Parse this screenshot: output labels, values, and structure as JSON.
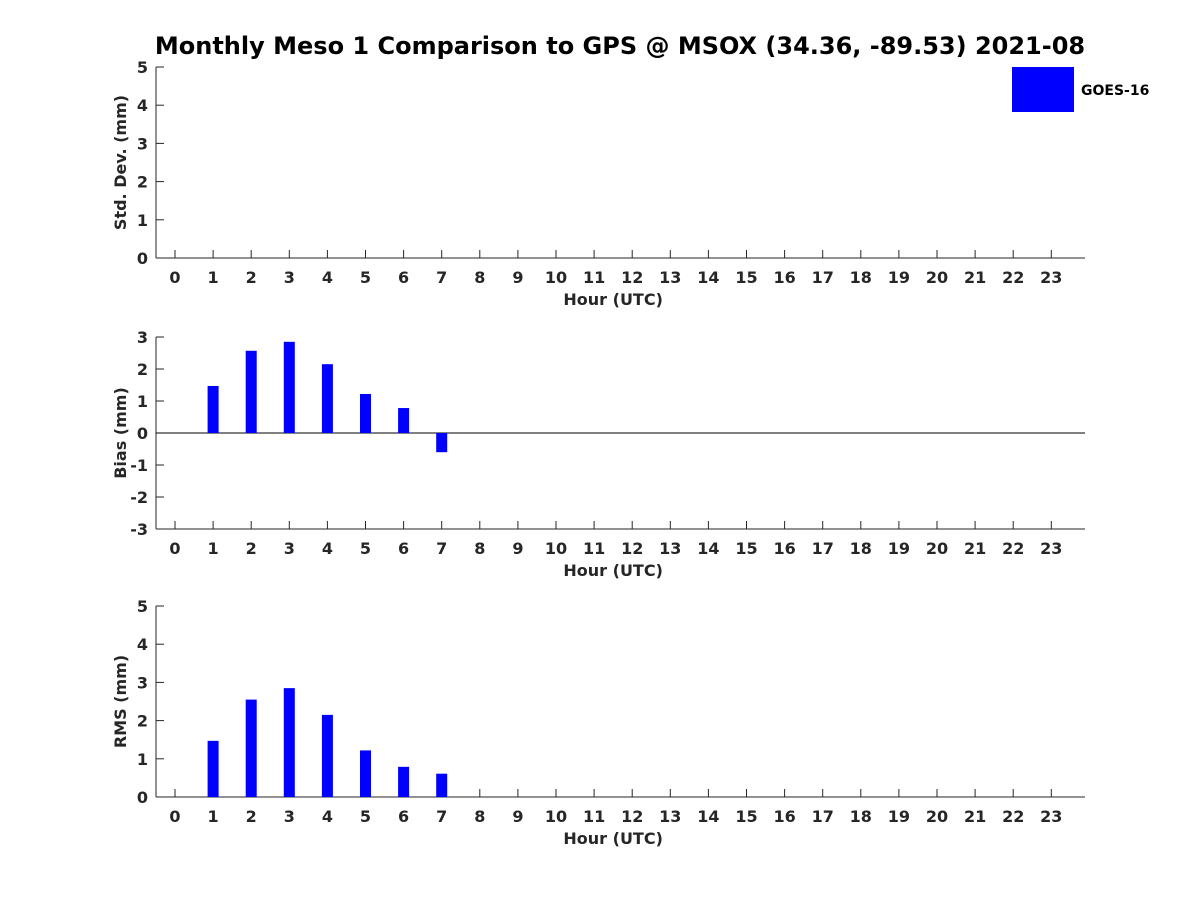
{
  "title": "Monthly Meso 1 Comparison to GPS @ MSOX (34.36, -89.53) 2021-08",
  "legend": {
    "label": "GOES-16",
    "color": "#0000ff",
    "placement": "top-right"
  },
  "chart_data": [
    {
      "type": "bar",
      "xlabel": "Hour (UTC)",
      "ylabel": "Std. Dev. (mm)",
      "ylim": [
        0,
        5
      ],
      "yticks": [
        "0",
        "1",
        "2",
        "3",
        "4",
        "5"
      ],
      "categories": [
        "0",
        "1",
        "2",
        "3",
        "4",
        "5",
        "6",
        "7",
        "8",
        "9",
        "10",
        "11",
        "12",
        "13",
        "14",
        "15",
        "16",
        "17",
        "18",
        "19",
        "20",
        "21",
        "22",
        "23"
      ],
      "series": [
        {
          "name": "GOES-16",
          "color": "#0000ff",
          "values": [
            null,
            null,
            null,
            null,
            null,
            null,
            null,
            null,
            null,
            null,
            null,
            null,
            null,
            null,
            null,
            null,
            null,
            null,
            null,
            null,
            null,
            null,
            null,
            null
          ]
        }
      ],
      "zero_line": false
    },
    {
      "type": "bar",
      "xlabel": "Hour (UTC)",
      "ylabel": "Bias (mm)",
      "ylim": [
        -3,
        3
      ],
      "yticks": [
        "-3",
        "-2",
        "-1",
        "0",
        "1",
        "2",
        "3"
      ],
      "categories": [
        "0",
        "1",
        "2",
        "3",
        "4",
        "5",
        "6",
        "7",
        "8",
        "9",
        "10",
        "11",
        "12",
        "13",
        "14",
        "15",
        "16",
        "17",
        "18",
        "19",
        "20",
        "21",
        "22",
        "23"
      ],
      "series": [
        {
          "name": "GOES-16",
          "color": "#0000ff",
          "values": [
            null,
            1.47,
            2.57,
            2.85,
            2.15,
            1.22,
            0.78,
            -0.6,
            null,
            null,
            null,
            null,
            null,
            null,
            null,
            null,
            null,
            null,
            null,
            null,
            null,
            null,
            null,
            null
          ]
        }
      ],
      "zero_line": true
    },
    {
      "type": "bar",
      "xlabel": "Hour (UTC)",
      "ylabel": "RMS (mm)",
      "ylim": [
        0,
        5
      ],
      "yticks": [
        "0",
        "1",
        "2",
        "3",
        "4",
        "5"
      ],
      "categories": [
        "0",
        "1",
        "2",
        "3",
        "4",
        "5",
        "6",
        "7",
        "8",
        "9",
        "10",
        "11",
        "12",
        "13",
        "14",
        "15",
        "16",
        "17",
        "18",
        "19",
        "20",
        "21",
        "22",
        "23"
      ],
      "series": [
        {
          "name": "GOES-16",
          "color": "#0000ff",
          "values": [
            null,
            1.47,
            2.55,
            2.85,
            2.15,
            1.22,
            0.79,
            0.61,
            null,
            null,
            null,
            null,
            null,
            null,
            null,
            null,
            null,
            null,
            null,
            null,
            null,
            null,
            null,
            null
          ]
        }
      ],
      "zero_line": false
    }
  ]
}
